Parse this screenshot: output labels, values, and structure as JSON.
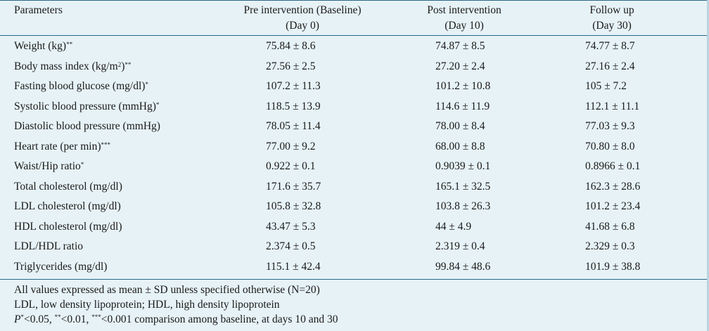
{
  "header": {
    "parameters": "Parameters",
    "pre_line1": "Pre intervention (Baseline)",
    "pre_line2": "(Day 0)",
    "post_line1": "Post intervention",
    "post_line2": "(Day 10)",
    "fu_line1": "Follow up",
    "fu_line2": "(Day 30)"
  },
  "rows": [
    {
      "param": "Weight (kg)",
      "sup": "**",
      "pre": "75.84 ± 8.6",
      "post": "74.87 ± 8.5",
      "fu": "74.77 ± 8.7"
    },
    {
      "param": "Body mass index (kg/m",
      "unit_sup": "2",
      "param_tail": ")",
      "sup": "**",
      "pre": "27.56 ± 2.5",
      "post": "27.20 ± 2.4",
      "fu": "27.16 ± 2.4"
    },
    {
      "param": "Fasting blood glucose (mg/dl)",
      "sup": "*",
      "pre": "107.2 ± 11.3",
      "post": "101.2 ± 10.8",
      "fu": "105 ± 7.2"
    },
    {
      "param": "Systolic blood pressure (mmHg)",
      "sup": "*",
      "pre": "118.5 ± 13.9",
      "post": "114.6 ± 11.9",
      "fu": "112.1 ± 11.1"
    },
    {
      "param": "Diastolic blood pressure (mmHg)",
      "sup": "",
      "pre": "78.05 ± 11.4",
      "post": "78.00 ± 8.4",
      "fu": "77.03 ± 9.3"
    },
    {
      "param": "Heart rate (per min)",
      "sup": "***",
      "pre": "77.00 ± 9.2",
      "post": "68.00 ± 8.8",
      "fu": "70.80 ± 8.0"
    },
    {
      "param": "Waist/Hip ratio",
      "sup": "*",
      "pre": "0.922 ± 0.1",
      "post": "0.9039 ± 0.1",
      "fu": "0.8966 ± 0.1"
    },
    {
      "param": "Total cholesterol (mg/dl)",
      "sup": "",
      "pre": "171.6 ± 35.7",
      "post": "165.1 ± 32.5",
      "fu": "162.3 ± 28.6"
    },
    {
      "param": "LDL cholesterol (mg/dl)",
      "sup": "",
      "pre": "105.8 ± 32.8",
      "post": "103.8 ± 26.3",
      "fu": "101.2 ± 23.4"
    },
    {
      "param": "HDL cholesterol (mg/dl)",
      "sup": "",
      "pre": "43.47 ± 5.3",
      "post": "44 ± 4.9",
      "fu": "41.68 ± 6.8"
    },
    {
      "param": "LDL/HDL ratio",
      "sup": "",
      "pre": "2.374 ± 0.5",
      "post": "2.319 ± 0.4",
      "fu": "2.329 ± 0.3"
    },
    {
      "param": "Triglycerides (mg/dl)",
      "sup": "",
      "pre": "115.1 ± 42.4",
      "post": "99.84 ± 48.6",
      "fu": "101.9 ± 38.8"
    }
  ],
  "notes": {
    "line1": "All values expressed as mean ± SD unless specified otherwise (N=20)",
    "line2": "LDL, low density lipoprotein; HDL, high density lipoprotein",
    "line3_p": "P",
    "line3_sup1": "*",
    "line3_a": "<0.05, ",
    "line3_sup2": "**",
    "line3_b": "<0.01, ",
    "line3_sup3": "***",
    "line3_c": "<0.001 comparison among baseline, at days 10 and 30"
  }
}
